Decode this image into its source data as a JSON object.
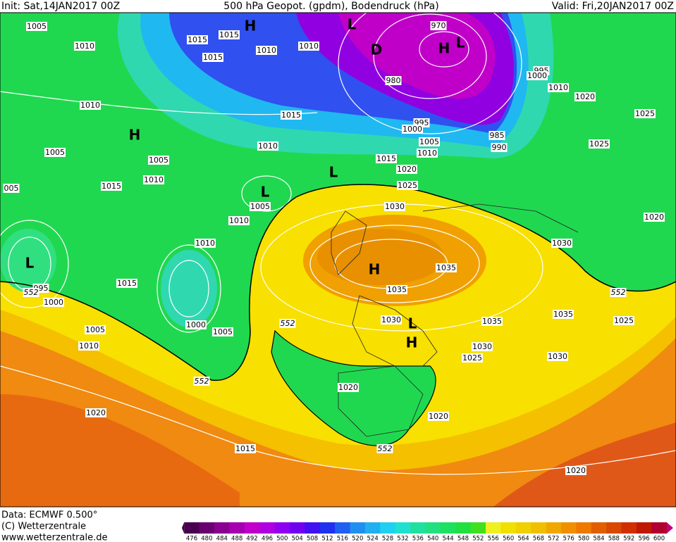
{
  "header": {
    "init": "Init: Sat,14JAN2017 00Z",
    "title": "500 hPa Geopot. (gpdm), Bodendruck (hPa)",
    "valid": "Valid: Fri,20JAN2017 00Z"
  },
  "isobar_labels": [
    "1005",
    "1010",
    "1015",
    "1015",
    "1015",
    "1010",
    "1010",
    "970",
    "980",
    "995",
    "1000",
    "1010",
    "1020",
    "1025",
    "1010",
    "1015",
    "995",
    "1000",
    "1005",
    "1010",
    "985",
    "990",
    "1025",
    "1005",
    "1005",
    "1010",
    "1015",
    "1020",
    "1010",
    "1025",
    "1015",
    "005",
    "1005",
    "1030",
    "1010",
    "1020",
    "1010",
    "1030",
    "1035",
    "995",
    "1000",
    "1015",
    "1035",
    "1035",
    "1025",
    "1000",
    "1005",
    "1005",
    "1030",
    "1035",
    "1010",
    "1030",
    "1025",
    "1030",
    "1020",
    "1020",
    "1020",
    "1015",
    "1020"
  ],
  "contour_labels": [
    "552",
    "552",
    "552",
    "552",
    "552"
  ],
  "pressure_centers": [
    "H",
    "L",
    "D",
    "H",
    "L",
    "H",
    "L",
    "L",
    "L",
    "H",
    "L",
    "H"
  ],
  "footer": {
    "source": "Data: ECMWF   0.500°",
    "copyright": "(C) Wetterzentrale",
    "url": "www.wetterzentrale.de"
  },
  "color_scale": {
    "values": [
      476,
      480,
      484,
      488,
      492,
      496,
      500,
      504,
      508,
      512,
      516,
      520,
      524,
      528,
      532,
      536,
      540,
      544,
      548,
      552,
      556,
      560,
      564,
      568,
      572,
      576,
      580,
      584,
      588,
      592,
      596,
      600
    ]
  }
}
